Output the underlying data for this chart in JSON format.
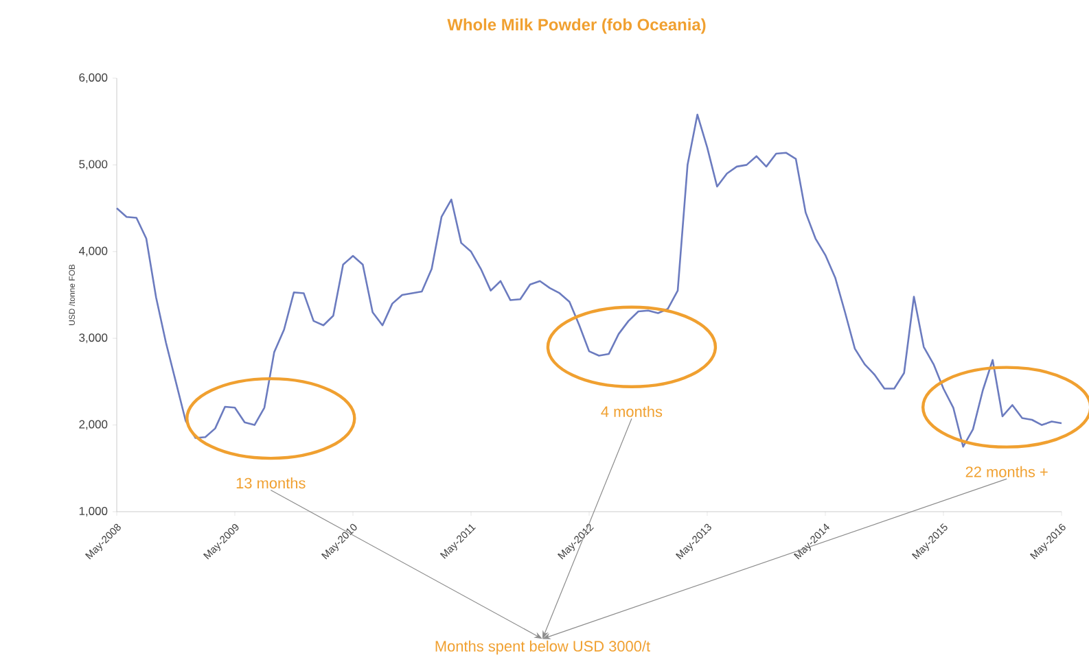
{
  "chart_data": {
    "type": "line",
    "title": "Whole Milk Powder (fob Oceania)",
    "ylabel": "USD /tonne FOB",
    "x": [
      "2008-05",
      "2008-06",
      "2008-07",
      "2008-08",
      "2008-09",
      "2008-10",
      "2008-11",
      "2008-12",
      "2009-01",
      "2009-02",
      "2009-03",
      "2009-04",
      "2009-05",
      "2009-06",
      "2009-07",
      "2009-08",
      "2009-09",
      "2009-10",
      "2009-11",
      "2009-12",
      "2010-01",
      "2010-02",
      "2010-03",
      "2010-04",
      "2010-05",
      "2010-06",
      "2010-07",
      "2010-08",
      "2010-09",
      "2010-10",
      "2010-11",
      "2010-12",
      "2011-01",
      "2011-02",
      "2011-03",
      "2011-04",
      "2011-05",
      "2011-06",
      "2011-07",
      "2011-08",
      "2011-09",
      "2011-10",
      "2011-11",
      "2011-12",
      "2012-01",
      "2012-02",
      "2012-03",
      "2012-04",
      "2012-05",
      "2012-06",
      "2012-07",
      "2012-08",
      "2012-09",
      "2012-10",
      "2012-11",
      "2012-12",
      "2013-01",
      "2013-02",
      "2013-03",
      "2013-04",
      "2013-05",
      "2013-06",
      "2013-07",
      "2013-08",
      "2013-09",
      "2013-10",
      "2013-11",
      "2013-12",
      "2014-01",
      "2014-02",
      "2014-03",
      "2014-04",
      "2014-05",
      "2014-06",
      "2014-07",
      "2014-08",
      "2014-09",
      "2014-10",
      "2014-11",
      "2014-12",
      "2015-01",
      "2015-02",
      "2015-03",
      "2015-04",
      "2015-05",
      "2015-06",
      "2015-07",
      "2015-08",
      "2015-09",
      "2015-10",
      "2015-11",
      "2015-12",
      "2016-01",
      "2016-02",
      "2016-03",
      "2016-04",
      "2016-05"
    ],
    "series": [
      {
        "color": "#6b7bbf",
        "values": [
          4500,
          4400,
          4390,
          4150,
          3470,
          2950,
          2500,
          2050,
          1850,
          1860,
          1960,
          2210,
          2200,
          2030,
          2000,
          2200,
          2840,
          3100,
          3530,
          3520,
          3200,
          3150,
          3260,
          3850,
          3950,
          3850,
          3300,
          3150,
          3400,
          3500,
          3520,
          3540,
          3800,
          4400,
          4600,
          4100,
          4000,
          3800,
          3550,
          3660,
          3440,
          3450,
          3620,
          3660,
          3580,
          3520,
          3420,
          3150,
          2850,
          2800,
          2820,
          3050,
          3200,
          3310,
          3320,
          3290,
          3340,
          3550,
          5000,
          5580,
          5200,
          4750,
          4900,
          4980,
          5000,
          5100,
          4980,
          5130,
          5140,
          5070,
          4450,
          4150,
          3960,
          3700,
          3300,
          2880,
          2700,
          2580,
          2420,
          2420,
          2600,
          3480,
          2900,
          2700,
          2420,
          2200,
          1750,
          1950,
          2400,
          2750,
          2100,
          2230,
          2080,
          2060,
          2000,
          2040,
          2020
        ]
      }
    ],
    "xlim": [
      "2008-05",
      "2016-05"
    ],
    "xticks": [
      {
        "value": "2008-05",
        "label": "May-2008"
      },
      {
        "value": "2009-05",
        "label": "May-2009"
      },
      {
        "value": "2010-05",
        "label": "May-2010"
      },
      {
        "value": "2011-05",
        "label": "May-2011"
      },
      {
        "value": "2012-05",
        "label": "May-2012"
      },
      {
        "value": "2013-05",
        "label": "May-2013"
      },
      {
        "value": "2014-05",
        "label": "May-2014"
      },
      {
        "value": "2015-05",
        "label": "May-2015"
      },
      {
        "value": "2016-05",
        "label": "May-2016"
      }
    ],
    "ylim": [
      1000,
      6000
    ],
    "yticks": [
      {
        "value": 1000,
        "label": "1,000"
      },
      {
        "value": 2000,
        "label": "2,000"
      },
      {
        "value": 3000,
        "label": "3,000"
      },
      {
        "value": 4000,
        "label": "4,000"
      },
      {
        "value": 5000,
        "label": "5,000"
      },
      {
        "value": 6000,
        "label": "6,000"
      }
    ],
    "annotations": [
      "13 months",
      "4 months",
      "22 months +",
      "Months spent below USD 3000/t"
    ]
  }
}
